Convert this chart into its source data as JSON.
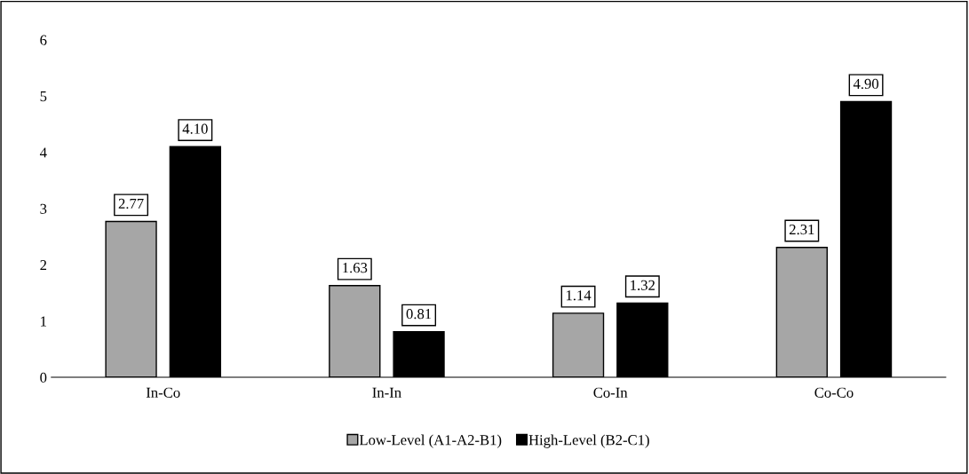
{
  "chart_data": {
    "type": "bar",
    "categories": [
      "In-Co",
      "In-In",
      "Co-In",
      "Co-Co"
    ],
    "series": [
      {
        "name": "Low-Level (A1-A2-B1)",
        "color": "#a6a6a6",
        "values": [
          2.77,
          1.63,
          1.14,
          2.31
        ]
      },
      {
        "name": "High-Level (B2-C1)",
        "color": "#000000",
        "values": [
          4.1,
          0.81,
          1.32,
          4.9
        ]
      }
    ],
    "ylim": [
      0,
      6
    ],
    "yticks": [
      0,
      1,
      2,
      3,
      4,
      5,
      6
    ],
    "value_labels": [
      [
        "2.77",
        "1.63",
        "1.14",
        "2.31"
      ],
      [
        "4.10",
        "0.81",
        "1.32",
        "4.90"
      ]
    ],
    "grid": false,
    "legend": "bottom"
  }
}
